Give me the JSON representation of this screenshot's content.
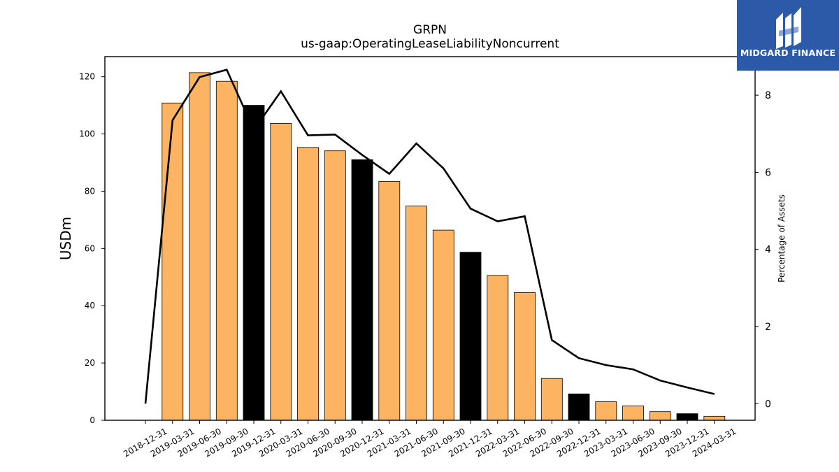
{
  "logo": {
    "text": "MIDGARD FINANCE"
  },
  "chart_data": {
    "type": "bar",
    "title": "GRPN",
    "subtitle": "us-gaap:OperatingLeaseLiabilityNoncurrent",
    "ylabel": "USDm",
    "y2label": "Percentage of Assets",
    "ylim": [
      0,
      127
    ],
    "y2lim": [
      -0.43,
      9.0
    ],
    "yticks": [
      0,
      20,
      40,
      60,
      80,
      100,
      120
    ],
    "y2ticks": [
      0,
      2,
      4,
      6,
      8
    ],
    "categories": [
      "2018-12-31",
      "2019-03-31",
      "2019-06-30",
      "2019-09-30",
      "2019-12-31",
      "2020-03-31",
      "2020-06-30",
      "2020-09-30",
      "2020-12-31",
      "2021-03-31",
      "2021-06-30",
      "2021-09-30",
      "2021-12-31",
      "2022-03-31",
      "2022-06-30",
      "2022-09-30",
      "2022-12-31",
      "2023-03-31",
      "2023-06-30",
      "2023-09-30",
      "2023-12-31",
      "2024-03-31"
    ],
    "series": [
      {
        "type": "bar",
        "axis": "left",
        "values": [
          0,
          110.8,
          121.4,
          118.4,
          110.0,
          103.7,
          95.3,
          94.1,
          91.0,
          83.4,
          74.8,
          66.4,
          58.7,
          50.6,
          44.6,
          14.6,
          9.2,
          6.5,
          5.0,
          3.0,
          2.3,
          1.4
        ],
        "colors": [
          "#fdb462",
          "#fdb462",
          "#fdb462",
          "#fdb462",
          "#000000",
          "#fdb462",
          "#fdb462",
          "#fdb462",
          "#000000",
          "#fdb462",
          "#fdb462",
          "#fdb462",
          "#000000",
          "#fdb462",
          "#fdb462",
          "#fdb462",
          "#000000",
          "#fdb462",
          "#fdb462",
          "#fdb462",
          "#000000",
          "#fdb462"
        ]
      },
      {
        "type": "line",
        "axis": "right",
        "color": "#000000",
        "values": [
          0,
          7.35,
          8.47,
          8.66,
          7.1,
          8.1,
          6.96,
          6.98,
          6.45,
          5.96,
          6.75,
          6.1,
          5.06,
          4.73,
          4.86,
          1.65,
          1.18,
          1.0,
          0.89,
          0.6,
          0.42,
          0.25
        ]
      }
    ],
    "grid": false,
    "legend": "none"
  }
}
